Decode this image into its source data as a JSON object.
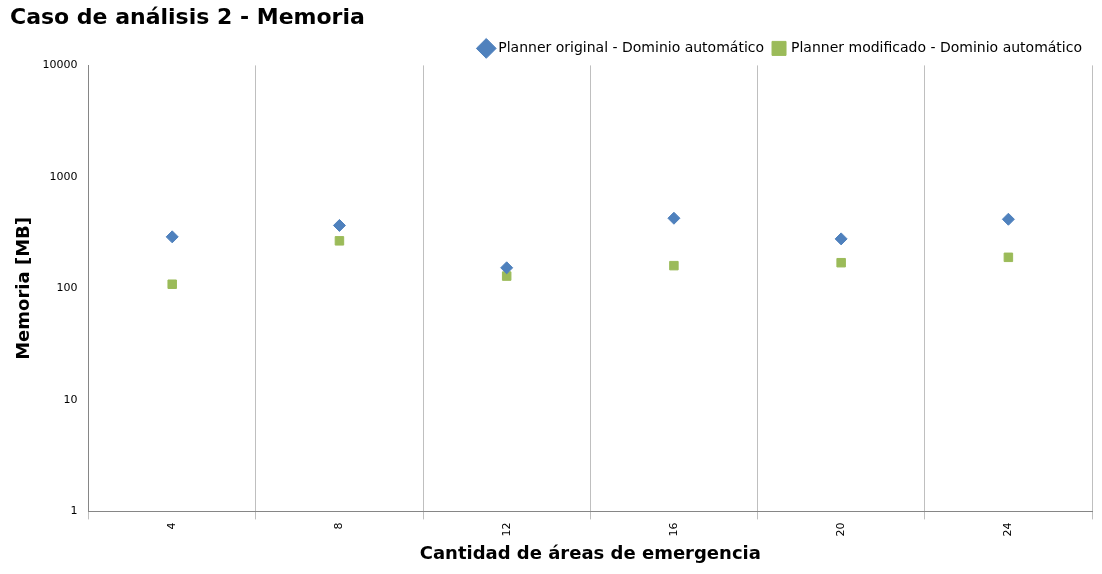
{
  "chart_data": {
    "type": "scatter",
    "title": "Caso de análisis 2 - Memoria",
    "xlabel": "Cantidad de áreas de emergencia",
    "ylabel": "Memoria [MB]",
    "categories": [
      "4",
      "8",
      "12",
      "16",
      "20",
      "24"
    ],
    "series": [
      {
        "name": "Planner original - Dominio automático",
        "color": "#4f81bd",
        "marker": "diamond",
        "values": [
          290,
          367,
          153,
          426,
          278,
          417
        ]
      },
      {
        "name": "Planner modificado - Dominio automático",
        "color": "#9bbb59",
        "marker": "square",
        "values": [
          109,
          267,
          129,
          160,
          170,
          190
        ]
      }
    ],
    "log": "y",
    "ylim": [
      1,
      10000
    ],
    "yticks": [
      1,
      10,
      100,
      1000,
      10000
    ],
    "grid": "x",
    "legend": "top right"
  }
}
